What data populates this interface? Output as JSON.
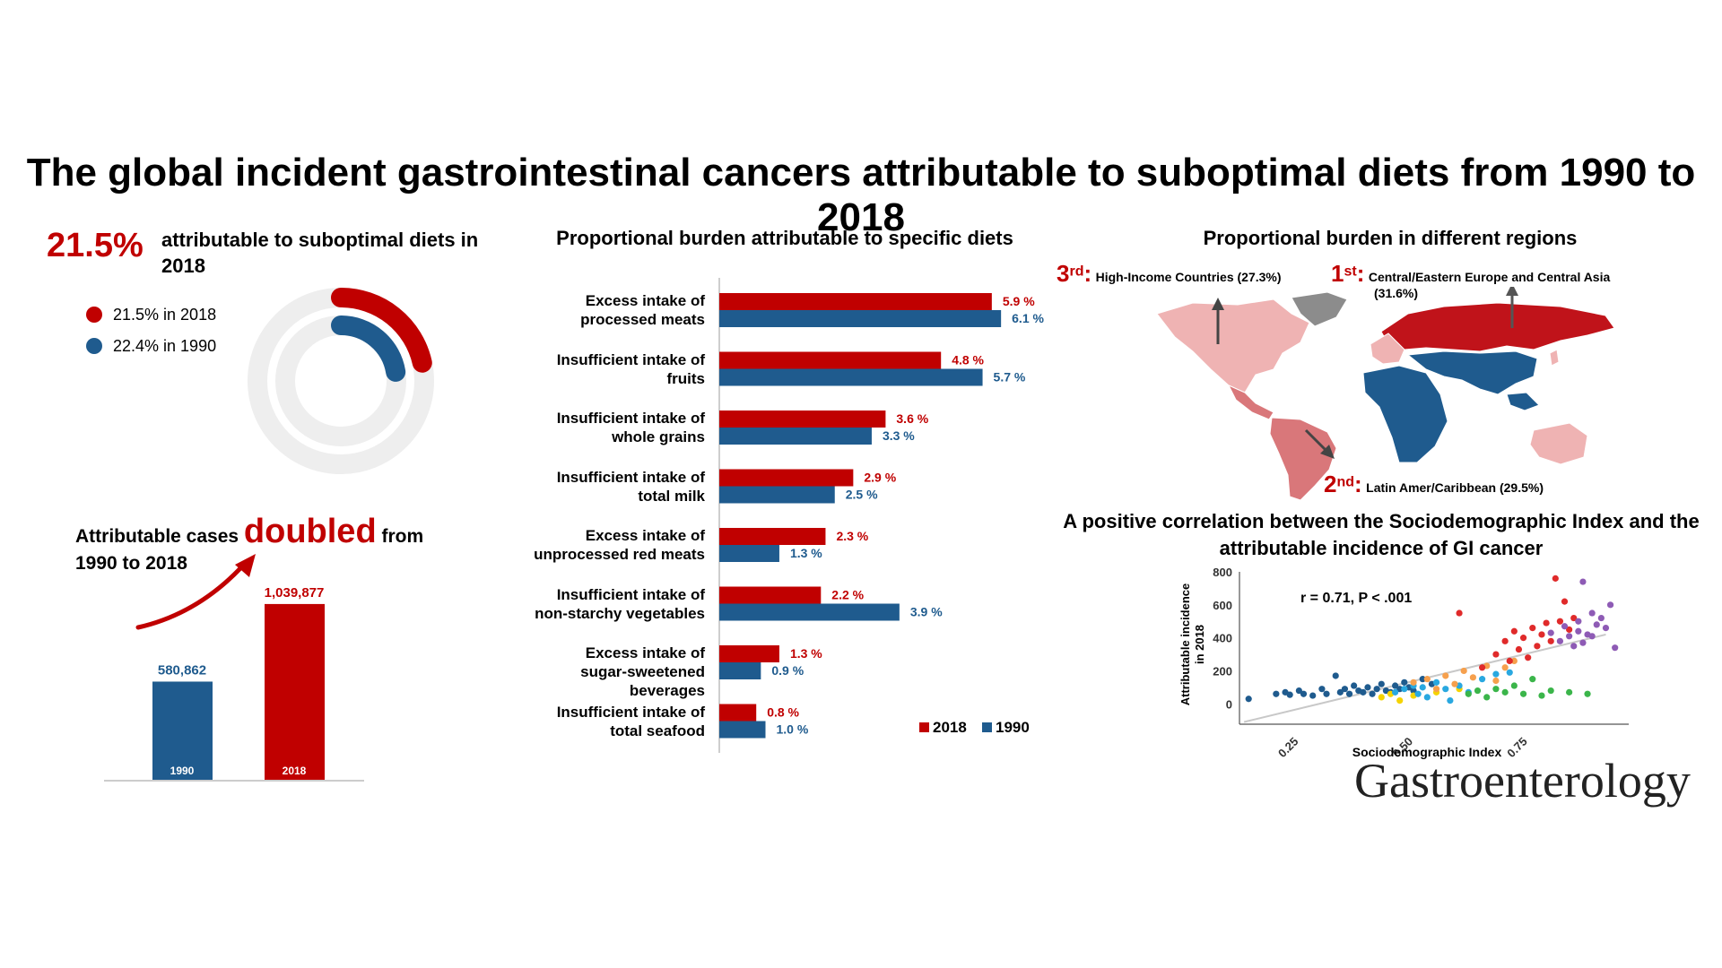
{
  "title": "The global incident gastrointestinal cancers attributable to suboptimal diets from 1990 to 2018",
  "summary": {
    "headline_pct": "21.5%",
    "headline_label": "attributable to suboptimal diets in 2018",
    "legend": [
      {
        "label": "21.5% in 2018",
        "color": "#c00000"
      },
      {
        "label": "22.4% in 1990",
        "color": "#1f5b8e"
      }
    ]
  },
  "cases": {
    "line1_prefix": "Attributable cases",
    "highlight": "doubled",
    "line1_suffix": "from",
    "line2": "1990 to 2018"
  },
  "colors": {
    "red": "#c00000",
    "blue": "#1f5b8e",
    "ring": "#eeeeee"
  },
  "chart_data": [
    {
      "type": "pie",
      "labels": [
        "2018",
        "1990"
      ],
      "values": [
        21.5,
        22.4
      ],
      "unit": "%",
      "style": "concentric rings"
    },
    {
      "type": "bar",
      "categories": [
        "1990",
        "2018"
      ],
      "values": [
        580862,
        1039877
      ],
      "value_labels": [
        "580,862",
        "1,039,877"
      ]
    },
    {
      "type": "bar",
      "orientation": "horizontal",
      "title": "Proportional burden attributable to specific diets",
      "categories": [
        [
          "Excess intake of",
          "processed meats"
        ],
        [
          "Insufficient intake of",
          "fruits"
        ],
        [
          "Insufficient intake of",
          "whole grains"
        ],
        [
          "Insufficient intake of",
          "total milk"
        ],
        [
          "Excess intake of",
          "unprocessed red meats"
        ],
        [
          "Insufficient intake of",
          "non-starchy vegetables"
        ],
        [
          "Excess intake of",
          "sugar-sweetened beverages"
        ],
        [
          "Insufficient intake of",
          "total seafood"
        ]
      ],
      "series": [
        {
          "name": "2018",
          "color": "#c00000",
          "values": [
            5.9,
            4.8,
            3.6,
            2.9,
            2.3,
            2.2,
            1.3,
            0.8
          ],
          "labels": [
            "5.9 %",
            "4.8 %",
            "3.6 %",
            "2.9 %",
            "2.3 %",
            "2.2 %",
            "1.3 %",
            "0.8 %"
          ]
        },
        {
          "name": "1990",
          "color": "#1f5b8e",
          "values": [
            6.1,
            5.7,
            3.3,
            2.5,
            1.3,
            3.9,
            0.9,
            1.0
          ],
          "labels": [
            "6.1 %",
            "5.7 %",
            "3.3 %",
            "2.5 %",
            "1.3 %",
            "3.9 %",
            "0.9 %",
            "1.0 %"
          ]
        }
      ],
      "unit": "%",
      "legend_position": "bottom-right"
    },
    {
      "type": "scatter",
      "title": "A positive correlation between the Sociodemographic Index and the attributable incidence of GI cancer",
      "xlabel": "Sociodemographic Index",
      "ylabel": "Attributable incidence in 2018",
      "xticks": [
        "0.25",
        "0.50",
        "0.75"
      ],
      "yticks": [
        "0",
        "200",
        "400",
        "600",
        "800"
      ],
      "xlim": [
        0.12,
        0.97
      ],
      "ylim": [
        -80,
        800
      ],
      "annotation": "r = 0.71, P < .001",
      "trend": {
        "x": [
          0.13,
          0.92
        ],
        "y": [
          -110,
          420
        ]
      },
      "points": [
        {
          "x": 0.14,
          "y": 30,
          "c": "#1f5b8e"
        },
        {
          "x": 0.2,
          "y": 60,
          "c": "#1f5b8e"
        },
        {
          "x": 0.22,
          "y": 70,
          "c": "#1f5b8e"
        },
        {
          "x": 0.23,
          "y": 55,
          "c": "#1f5b8e"
        },
        {
          "x": 0.25,
          "y": 80,
          "c": "#1f5b8e"
        },
        {
          "x": 0.26,
          "y": 60,
          "c": "#1f5b8e"
        },
        {
          "x": 0.28,
          "y": 50,
          "c": "#1f5b8e"
        },
        {
          "x": 0.3,
          "y": 90,
          "c": "#1f5b8e"
        },
        {
          "x": 0.31,
          "y": 60,
          "c": "#1f5b8e"
        },
        {
          "x": 0.33,
          "y": 170,
          "c": "#1f5b8e"
        },
        {
          "x": 0.34,
          "y": 70,
          "c": "#1f5b8e"
        },
        {
          "x": 0.35,
          "y": 90,
          "c": "#1f5b8e"
        },
        {
          "x": 0.36,
          "y": 60,
          "c": "#1f5b8e"
        },
        {
          "x": 0.37,
          "y": 110,
          "c": "#1f5b8e"
        },
        {
          "x": 0.38,
          "y": 80,
          "c": "#1f5b8e"
        },
        {
          "x": 0.39,
          "y": 70,
          "c": "#1f5b8e"
        },
        {
          "x": 0.4,
          "y": 100,
          "c": "#1f5b8e"
        },
        {
          "x": 0.41,
          "y": 60,
          "c": "#1f5b8e"
        },
        {
          "x": 0.42,
          "y": 90,
          "c": "#1f5b8e"
        },
        {
          "x": 0.43,
          "y": 120,
          "c": "#1f5b8e"
        },
        {
          "x": 0.44,
          "y": 80,
          "c": "#1f5b8e"
        },
        {
          "x": 0.45,
          "y": 70,
          "c": "#1f5b8e"
        },
        {
          "x": 0.46,
          "y": 110,
          "c": "#1f5b8e"
        },
        {
          "x": 0.47,
          "y": 90,
          "c": "#1f5b8e"
        },
        {
          "x": 0.48,
          "y": 130,
          "c": "#1f5b8e"
        },
        {
          "x": 0.49,
          "y": 100,
          "c": "#1f5b8e"
        },
        {
          "x": 0.5,
          "y": 80,
          "c": "#1f5b8e"
        },
        {
          "x": 0.52,
          "y": 150,
          "c": "#1f5b8e"
        },
        {
          "x": 0.54,
          "y": 120,
          "c": "#1f5b8e"
        },
        {
          "x": 0.43,
          "y": 40,
          "c": "#f5d300"
        },
        {
          "x": 0.45,
          "y": 60,
          "c": "#f5d300"
        },
        {
          "x": 0.47,
          "y": 20,
          "c": "#f5d300"
        },
        {
          "x": 0.5,
          "y": 50,
          "c": "#f5d300"
        },
        {
          "x": 0.55,
          "y": 70,
          "c": "#f5d300"
        },
        {
          "x": 0.6,
          "y": 90,
          "c": "#f5d300"
        },
        {
          "x": 0.46,
          "y": 70,
          "c": "#29a8e0"
        },
        {
          "x": 0.48,
          "y": 90,
          "c": "#29a8e0"
        },
        {
          "x": 0.5,
          "y": 110,
          "c": "#29a8e0"
        },
        {
          "x": 0.51,
          "y": 60,
          "c": "#29a8e0"
        },
        {
          "x": 0.52,
          "y": 100,
          "c": "#29a8e0"
        },
        {
          "x": 0.53,
          "y": 40,
          "c": "#29a8e0"
        },
        {
          "x": 0.55,
          "y": 130,
          "c": "#29a8e0"
        },
        {
          "x": 0.57,
          "y": 90,
          "c": "#29a8e0"
        },
        {
          "x": 0.58,
          "y": 20,
          "c": "#29a8e0"
        },
        {
          "x": 0.6,
          "y": 110,
          "c": "#29a8e0"
        },
        {
          "x": 0.62,
          "y": 70,
          "c": "#29a8e0"
        },
        {
          "x": 0.65,
          "y": 150,
          "c": "#29a8e0"
        },
        {
          "x": 0.68,
          "y": 180,
          "c": "#29a8e0"
        },
        {
          "x": 0.71,
          "y": 190,
          "c": "#29a8e0"
        },
        {
          "x": 0.5,
          "y": 130,
          "c": "#f6a04d"
        },
        {
          "x": 0.53,
          "y": 150,
          "c": "#f6a04d"
        },
        {
          "x": 0.55,
          "y": 90,
          "c": "#f6a04d"
        },
        {
          "x": 0.57,
          "y": 170,
          "c": "#f6a04d"
        },
        {
          "x": 0.59,
          "y": 120,
          "c": "#f6a04d"
        },
        {
          "x": 0.61,
          "y": 200,
          "c": "#f6a04d"
        },
        {
          "x": 0.63,
          "y": 160,
          "c": "#f6a04d"
        },
        {
          "x": 0.66,
          "y": 230,
          "c": "#f6a04d"
        },
        {
          "x": 0.68,
          "y": 140,
          "c": "#f6a04d"
        },
        {
          "x": 0.7,
          "y": 220,
          "c": "#f6a04d"
        },
        {
          "x": 0.72,
          "y": 260,
          "c": "#f6a04d"
        },
        {
          "x": 0.62,
          "y": 60,
          "c": "#3bb54a"
        },
        {
          "x": 0.64,
          "y": 80,
          "c": "#3bb54a"
        },
        {
          "x": 0.66,
          "y": 40,
          "c": "#3bb54a"
        },
        {
          "x": 0.68,
          "y": 90,
          "c": "#3bb54a"
        },
        {
          "x": 0.7,
          "y": 70,
          "c": "#3bb54a"
        },
        {
          "x": 0.72,
          "y": 110,
          "c": "#3bb54a"
        },
        {
          "x": 0.74,
          "y": 60,
          "c": "#3bb54a"
        },
        {
          "x": 0.76,
          "y": 150,
          "c": "#3bb54a"
        },
        {
          "x": 0.78,
          "y": 50,
          "c": "#3bb54a"
        },
        {
          "x": 0.8,
          "y": 80,
          "c": "#3bb54a"
        },
        {
          "x": 0.84,
          "y": 70,
          "c": "#3bb54a"
        },
        {
          "x": 0.88,
          "y": 60,
          "c": "#3bb54a"
        },
        {
          "x": 0.6,
          "y": 550,
          "c": "#e02a2a"
        },
        {
          "x": 0.65,
          "y": 220,
          "c": "#e02a2a"
        },
        {
          "x": 0.68,
          "y": 300,
          "c": "#e02a2a"
        },
        {
          "x": 0.7,
          "y": 380,
          "c": "#e02a2a"
        },
        {
          "x": 0.71,
          "y": 260,
          "c": "#e02a2a"
        },
        {
          "x": 0.72,
          "y": 440,
          "c": "#e02a2a"
        },
        {
          "x": 0.73,
          "y": 330,
          "c": "#e02a2a"
        },
        {
          "x": 0.74,
          "y": 400,
          "c": "#e02a2a"
        },
        {
          "x": 0.75,
          "y": 280,
          "c": "#e02a2a"
        },
        {
          "x": 0.76,
          "y": 460,
          "c": "#e02a2a"
        },
        {
          "x": 0.77,
          "y": 350,
          "c": "#e02a2a"
        },
        {
          "x": 0.78,
          "y": 420,
          "c": "#e02a2a"
        },
        {
          "x": 0.79,
          "y": 490,
          "c": "#e02a2a"
        },
        {
          "x": 0.8,
          "y": 380,
          "c": "#e02a2a"
        },
        {
          "x": 0.81,
          "y": 760,
          "c": "#e02a2a"
        },
        {
          "x": 0.82,
          "y": 500,
          "c": "#e02a2a"
        },
        {
          "x": 0.83,
          "y": 620,
          "c": "#e02a2a"
        },
        {
          "x": 0.84,
          "y": 450,
          "c": "#e02a2a"
        },
        {
          "x": 0.85,
          "y": 520,
          "c": "#e02a2a"
        },
        {
          "x": 0.8,
          "y": 430,
          "c": "#8e5bb5"
        },
        {
          "x": 0.82,
          "y": 380,
          "c": "#8e5bb5"
        },
        {
          "x": 0.83,
          "y": 470,
          "c": "#8e5bb5"
        },
        {
          "x": 0.84,
          "y": 410,
          "c": "#8e5bb5"
        },
        {
          "x": 0.85,
          "y": 350,
          "c": "#8e5bb5"
        },
        {
          "x": 0.86,
          "y": 500,
          "c": "#8e5bb5"
        },
        {
          "x": 0.86,
          "y": 440,
          "c": "#8e5bb5"
        },
        {
          "x": 0.87,
          "y": 740,
          "c": "#8e5bb5"
        },
        {
          "x": 0.88,
          "y": 420,
          "c": "#8e5bb5"
        },
        {
          "x": 0.89,
          "y": 550,
          "c": "#8e5bb5"
        },
        {
          "x": 0.9,
          "y": 480,
          "c": "#8e5bb5"
        },
        {
          "x": 0.91,
          "y": 520,
          "c": "#8e5bb5"
        },
        {
          "x": 0.92,
          "y": 460,
          "c": "#8e5bb5"
        },
        {
          "x": 0.93,
          "y": 600,
          "c": "#8e5bb5"
        },
        {
          "x": 0.94,
          "y": 340,
          "c": "#8e5bb5"
        },
        {
          "x": 0.87,
          "y": 370,
          "c": "#8e5bb5"
        },
        {
          "x": 0.89,
          "y": 410,
          "c": "#8e5bb5"
        }
      ]
    }
  ],
  "map": {
    "title": "Proportional burden in different regions",
    "ranks": [
      {
        "num": "3",
        "sup": "rd",
        "text": "High-Income Countries (27.3%)"
      },
      {
        "num": "1",
        "sup": "st",
        "text": "Central/Eastern Europe and Central Asia",
        "text2": "(31.6%)"
      },
      {
        "num": "2",
        "sup": "nd",
        "text": "Latin Amer/Caribbean (29.5%)"
      }
    ],
    "colors": {
      "top": "#c0131a",
      "second": "#d9777a",
      "third": "#efb3b3",
      "other": "#1f5b8e",
      "missing": "#8c8c8c"
    }
  },
  "journal": "Gastroenterology"
}
